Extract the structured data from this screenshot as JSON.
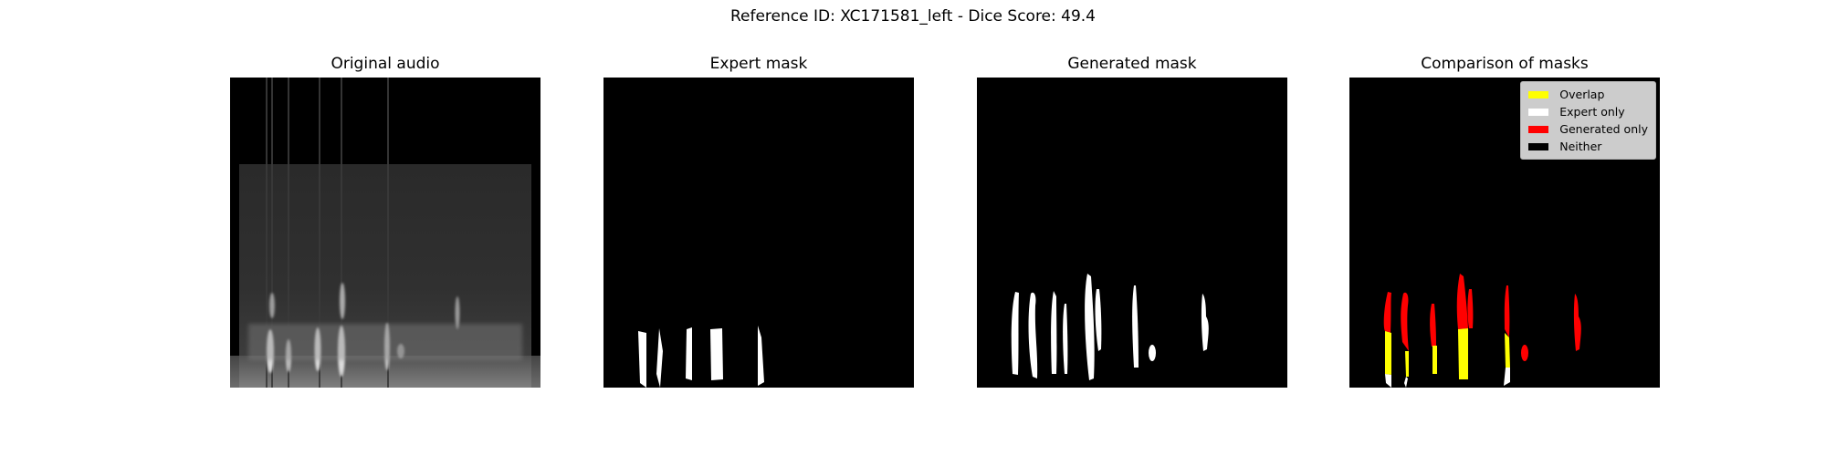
{
  "figure": {
    "title": "Reference ID: XC171581_left - Dice Score: 49.4"
  },
  "chart_data": [
    {
      "type": "heatmap",
      "title": "Original audio",
      "content": "grayscale spectrogram",
      "axes_visible": false,
      "grid": false
    },
    {
      "type": "heatmap",
      "title": "Expert mask",
      "content": "binary mask",
      "segments": 5,
      "axes_visible": false,
      "grid": false
    },
    {
      "type": "heatmap",
      "title": "Generated mask",
      "content": "binary mask",
      "segments": 10,
      "axes_visible": false,
      "grid": false
    },
    {
      "type": "heatmap",
      "title": "Comparison of masks",
      "content": "categorical mask overlay",
      "axes_visible": false,
      "grid": false,
      "legend_position": "top-right",
      "legend": [
        {
          "label": "Overlap",
          "color": "#ffff00"
        },
        {
          "label": "Expert only",
          "color": "#ffffff"
        },
        {
          "label": "Generated only",
          "color": "#ff0000"
        },
        {
          "label": "Neither",
          "color": "#000000"
        }
      ]
    }
  ]
}
